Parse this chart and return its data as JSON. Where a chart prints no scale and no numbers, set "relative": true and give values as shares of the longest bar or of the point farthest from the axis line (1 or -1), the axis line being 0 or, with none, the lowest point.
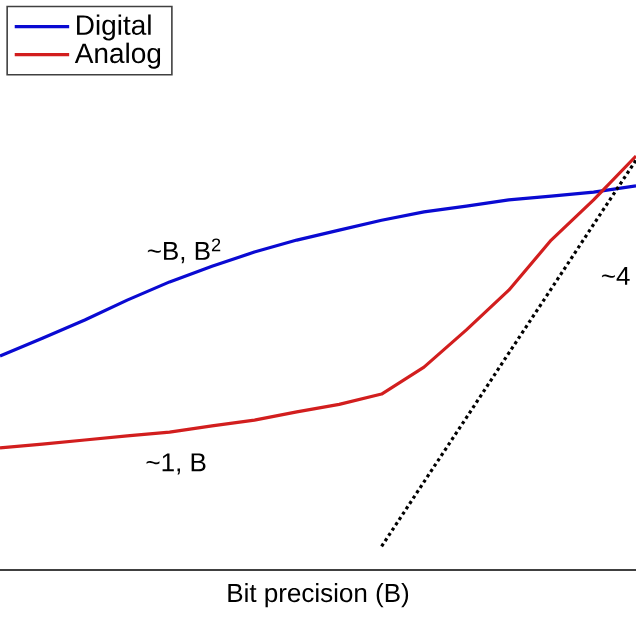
{
  "chart_data": {
    "type": "line",
    "relative": true,
    "xlabel": "Bit precision (B)",
    "legend": "top left",
    "categories": [
      null,
      null,
      null,
      null,
      null,
      null,
      null,
      null,
      null,
      null,
      null,
      null,
      null,
      null,
      null,
      null
    ],
    "series": [
      {
        "name": "Digital",
        "color": "#0a0ad2",
        "line_style": "solid",
        "values": [
          0.517,
          0.56,
          0.604,
          0.652,
          0.696,
          0.734,
          0.768,
          0.797,
          0.821,
          0.845,
          0.865,
          0.879,
          0.894,
          0.903,
          0.913,
          0.928
        ]
      },
      {
        "name": "Analog",
        "color": "#d21e1e",
        "line_style": "solid",
        "values": [
          0.295,
          0.304,
          0.314,
          0.324,
          0.333,
          0.348,
          0.362,
          0.382,
          0.4,
          0.425,
          0.49,
          0.58,
          0.676,
          0.797,
          0.894,
          1
        ]
      },
      {
        "color": "#000000",
        "line_style": "dotted",
        "values": [
          null,
          null,
          null,
          null,
          null,
          null,
          null,
          null,
          null,
          0.057,
          0.213,
          0.368,
          0.524,
          0.679,
          0.835,
          0.99
        ]
      }
    ],
    "annotations": [
      "~B, B$^{2}$",
      "~1, B",
      "~4"
    ]
  }
}
